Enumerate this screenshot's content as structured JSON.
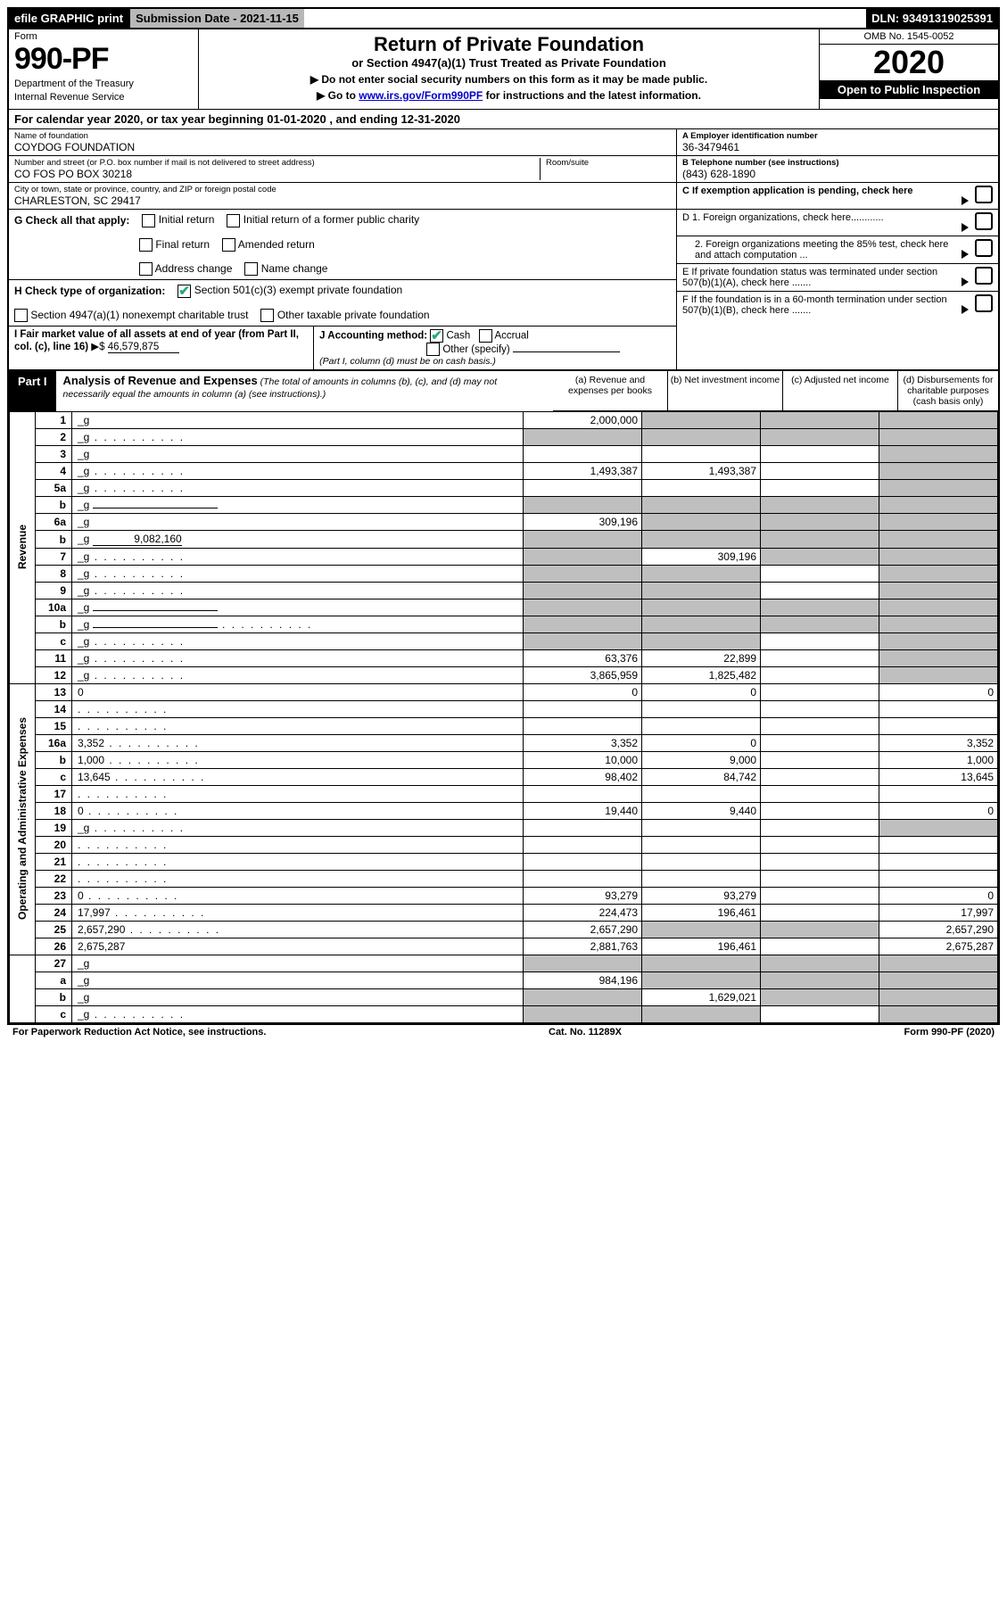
{
  "topbar": {
    "efile": "efile GRAPHIC print",
    "submission": "Submission Date - 2021-11-15",
    "dln": "DLN: 93491319025391"
  },
  "header": {
    "form_label": "Form",
    "form_num": "990-PF",
    "dept1": "Department of the Treasury",
    "dept2": "Internal Revenue Service",
    "title": "Return of Private Foundation",
    "subtitle": "or Section 4947(a)(1) Trust Treated as Private Foundation",
    "instr1": "▶ Do not enter social security numbers on this form as it may be made public.",
    "instr2_pre": "▶ Go to ",
    "instr2_link": "www.irs.gov/Form990PF",
    "instr2_post": " for instructions and the latest information.",
    "omb": "OMB No. 1545-0052",
    "year": "2020",
    "open": "Open to Public Inspection"
  },
  "cal_year": "For calendar year 2020, or tax year beginning 01-01-2020           , and ending 12-31-2020",
  "entity": {
    "name_label": "Name of foundation",
    "name": "COYDOG FOUNDATION",
    "addr_label": "Number and street (or P.O. box number if mail is not delivered to street address)",
    "addr": "CO FOS PO BOX 30218",
    "room_label": "Room/suite",
    "city_label": "City or town, state or province, country, and ZIP or foreign postal code",
    "city": "CHARLESTON, SC  29417",
    "ein_label": "A Employer identification number",
    "ein": "36-3479461",
    "tel_label": "B Telephone number (see instructions)",
    "tel": "(843) 628-1890",
    "c_label": "C If exemption application is pending, check here"
  },
  "checks": {
    "g": "G Check all that apply:",
    "g_opts": [
      "Initial return",
      "Initial return of a former public charity",
      "Final return",
      "Amended return",
      "Address change",
      "Name change"
    ],
    "h": "H Check type of organization:",
    "h1": "Section 501(c)(3) exempt private foundation",
    "h2": "Section 4947(a)(1) nonexempt charitable trust",
    "h3": "Other taxable private foundation",
    "i": "I Fair market value of all assets at end of year (from Part II, col. (c), line 16)",
    "i_val": "46,579,875",
    "j": "J Accounting method:",
    "j_cash": "Cash",
    "j_accrual": "Accrual",
    "j_other": "Other (specify)",
    "j_note": "(Part I, column (d) must be on cash basis.)",
    "d1": "D 1. Foreign organizations, check here............",
    "d2": "2. Foreign organizations meeting the 85% test, check here and attach computation ...",
    "e": "E  If private foundation status was terminated under section 507(b)(1)(A), check here .......",
    "f": "F  If the foundation is in a 60-month termination under section 507(b)(1)(B), check here .......",
    "i_prefix": "▶$  "
  },
  "part1": {
    "tab": "Part I",
    "title": "Analysis of Revenue and Expenses",
    "note": " (The total of amounts in columns (b), (c), and (d) may not necessarily equal the amounts in column (a) (see instructions).)",
    "cols": {
      "a": "(a)   Revenue and expenses per books",
      "b": "(b)   Net investment income",
      "c": "(c)   Adjusted net income",
      "d": "(d)   Disbursements for charitable purposes (cash basis only)"
    }
  },
  "side_labels": {
    "rev": "Revenue",
    "exp": "Operating and Administrative Expenses"
  },
  "rows": [
    {
      "n": "1",
      "d": "_g",
      "a": "2,000,000",
      "b": "_g",
      "c": "_g"
    },
    {
      "n": "2",
      "d": "_g",
      "dots": true,
      "a": "_g",
      "b": "_g",
      "c": "_g"
    },
    {
      "n": "3",
      "d": "_g",
      "a": "",
      "b": "",
      "c": ""
    },
    {
      "n": "4",
      "d": "_g",
      "dots": true,
      "a": "1,493,387",
      "b": "1,493,387",
      "c": ""
    },
    {
      "n": "5a",
      "d": "_g",
      "dots": true,
      "a": "",
      "b": "",
      "c": ""
    },
    {
      "n": "b",
      "d": "_g",
      "inline": true,
      "a": "_g",
      "b": "_g",
      "c": "_g"
    },
    {
      "n": "6a",
      "d": "_g",
      "a": "309,196",
      "b": "_g",
      "c": "_g"
    },
    {
      "n": "b",
      "d": "_g",
      "inline_val": "9,082,160",
      "a": "_g",
      "b": "_g",
      "c": "_g"
    },
    {
      "n": "7",
      "d": "_g",
      "dots": true,
      "a": "_g",
      "b": "309,196",
      "c": "_g"
    },
    {
      "n": "8",
      "d": "_g",
      "dots": true,
      "a": "_g",
      "b": "_g",
      "c": ""
    },
    {
      "n": "9",
      "d": "_g",
      "dots": true,
      "a": "_g",
      "b": "_g",
      "c": ""
    },
    {
      "n": "10a",
      "d": "_g",
      "inline": true,
      "a": "_g",
      "b": "_g",
      "c": "_g"
    },
    {
      "n": "b",
      "d": "_g",
      "dots": true,
      "inline": true,
      "a": "_g",
      "b": "_g",
      "c": "_g"
    },
    {
      "n": "c",
      "d": "_g",
      "dots": true,
      "a": "_g",
      "b": "_g",
      "c": ""
    },
    {
      "n": "11",
      "d": "_g",
      "dots": true,
      "a": "63,376",
      "b": "22,899",
      "c": ""
    },
    {
      "n": "12",
      "d": "_g",
      "dots": true,
      "a": "3,865,959",
      "b": "1,825,482",
      "c": ""
    }
  ],
  "exp_rows": [
    {
      "n": "13",
      "d": "0",
      "a": "0",
      "b": "0",
      "c": ""
    },
    {
      "n": "14",
      "d": "",
      "dots": true,
      "a": "",
      "b": "",
      "c": ""
    },
    {
      "n": "15",
      "d": "",
      "dots": true,
      "a": "",
      "b": "",
      "c": ""
    },
    {
      "n": "16a",
      "d": "3,352",
      "dots": true,
      "a": "3,352",
      "b": "0",
      "c": ""
    },
    {
      "n": "b",
      "d": "1,000",
      "dots": true,
      "a": "10,000",
      "b": "9,000",
      "c": ""
    },
    {
      "n": "c",
      "d": "13,645",
      "dots": true,
      "a": "98,402",
      "b": "84,742",
      "c": ""
    },
    {
      "n": "17",
      "d": "",
      "dots": true,
      "a": "",
      "b": "",
      "c": ""
    },
    {
      "n": "18",
      "d": "0",
      "dots": true,
      "a": "19,440",
      "b": "9,440",
      "c": ""
    },
    {
      "n": "19",
      "d": "_g",
      "dots": true,
      "a": "",
      "b": "",
      "c": ""
    },
    {
      "n": "20",
      "d": "",
      "dots": true,
      "a": "",
      "b": "",
      "c": ""
    },
    {
      "n": "21",
      "d": "",
      "dots": true,
      "a": "",
      "b": "",
      "c": ""
    },
    {
      "n": "22",
      "d": "",
      "dots": true,
      "a": "",
      "b": "",
      "c": ""
    },
    {
      "n": "23",
      "d": "0",
      "dots": true,
      "a": "93,279",
      "b": "93,279",
      "c": ""
    },
    {
      "n": "24",
      "d": "17,997",
      "dots": true,
      "a": "224,473",
      "b": "196,461",
      "c": ""
    },
    {
      "n": "25",
      "d": "2,657,290",
      "dots": true,
      "a": "2,657,290",
      "b": "_g",
      "c": "_g"
    },
    {
      "n": "26",
      "d": "2,675,287",
      "a": "2,881,763",
      "b": "196,461",
      "c": ""
    }
  ],
  "final_rows": [
    {
      "n": "27",
      "d": "_g",
      "a": "_g",
      "b": "_g",
      "c": "_g"
    },
    {
      "n": "a",
      "d": "_g",
      "a": "984,196",
      "b": "_g",
      "c": "_g"
    },
    {
      "n": "b",
      "d": "_g",
      "a": "_g",
      "b": "1,629,021",
      "c": "_g"
    },
    {
      "n": "c",
      "d": "_g",
      "dots": true,
      "a": "_g",
      "b": "_g",
      "c": ""
    }
  ],
  "footer": {
    "left": "For Paperwork Reduction Act Notice, see instructions.",
    "mid": "Cat. No. 11289X",
    "right": "Form 990-PF (2020)"
  }
}
